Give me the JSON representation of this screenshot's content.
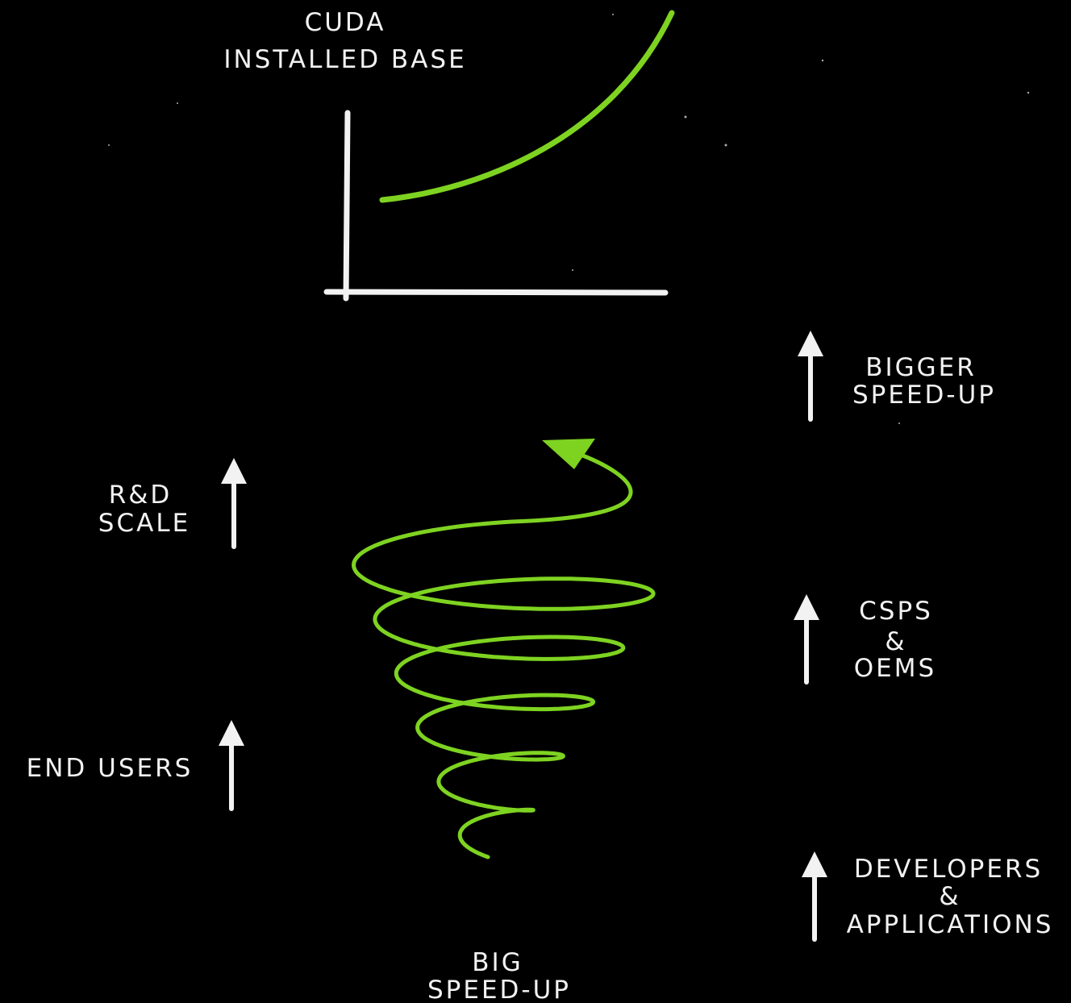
{
  "graph_label": {
    "lines": [
      "CUDA",
      "INSTALLED BASE"
    ]
  },
  "labels": [
    {
      "lines": [
        "BIGGER",
        "SPEED-UP"
      ]
    },
    {
      "lines": [
        "R&D",
        "SCALE"
      ]
    },
    {
      "lines": [
        "CSPS",
        "&",
        "OEMS"
      ]
    },
    {
      "lines": [
        "END USERS"
      ]
    },
    {
      "lines": [
        "DEVELOPERS",
        "&",
        "APPLICATIONS"
      ]
    },
    {
      "lines": [
        "BIG",
        "SPEED-UP"
      ]
    }
  ]
}
